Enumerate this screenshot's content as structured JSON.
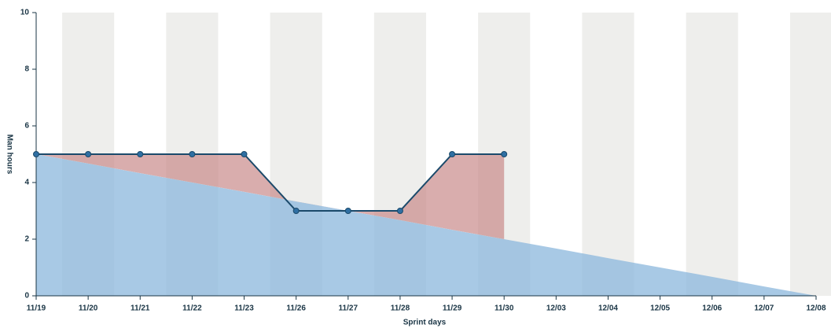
{
  "chart_data": {
    "type": "line",
    "x_label": "Sprint days",
    "y_label": "Man hours",
    "categories": [
      "11/19",
      "11/20",
      "11/21",
      "11/22",
      "11/23",
      "11/26",
      "11/27",
      "11/28",
      "11/29",
      "11/30",
      "12/03",
      "12/04",
      "12/05",
      "12/06",
      "12/07",
      "12/08"
    ],
    "series": [
      {
        "color": "#1b4a6b",
        "fill": "#c98a8a",
        "values": [
          5,
          5,
          5,
          5,
          5,
          3,
          3,
          3,
          5,
          5,
          null,
          null,
          null,
          null,
          null,
          null
        ]
      },
      {
        "color": "#8fbade",
        "values": [
          5,
          4.67,
          4.33,
          4,
          3.67,
          3.33,
          3,
          2.67,
          2.33,
          2,
          1.67,
          1.33,
          1,
          0.67,
          0.33,
          0
        ]
      }
    ],
    "ylim": [
      0,
      10
    ],
    "yticks": [
      0,
      2,
      4,
      6,
      8,
      10
    ],
    "grid": false
  }
}
